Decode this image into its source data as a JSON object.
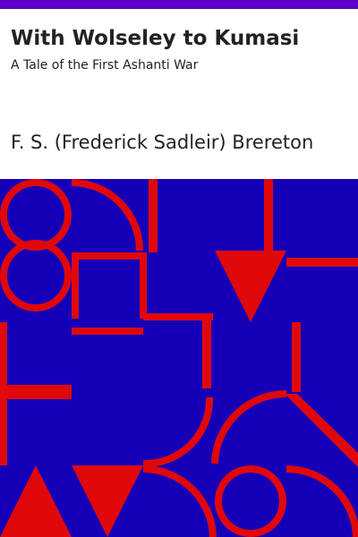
{
  "book": {
    "title": "With Wolseley to Kumasi",
    "subtitle": "A Tale of the First Ashanti War",
    "author": "F. S. (Frederick Sadleir) Brereton"
  },
  "colors": {
    "accent": "#5a00c8",
    "pattern_background": "#1500b8",
    "pattern_shapes": "#e00808",
    "text": "#222222",
    "paper": "#ffffff"
  }
}
